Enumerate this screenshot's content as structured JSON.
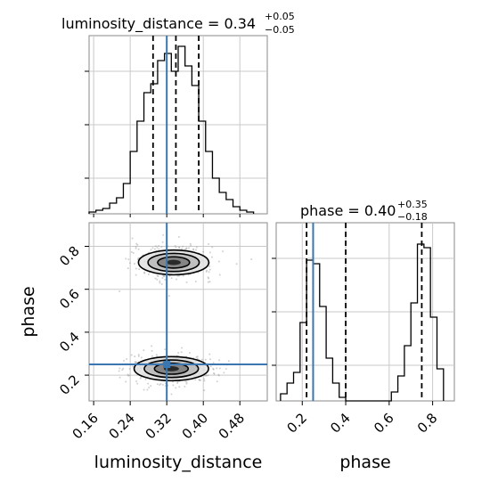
{
  "chart_data": {
    "type": "corner",
    "truth_color": "#3a77b0",
    "grid": true,
    "parameters": [
      "luminosity_distance",
      "phase"
    ],
    "xlabels": {
      "luminosity_distance": "luminosity_distance",
      "phase": "phase"
    },
    "ylabels": {
      "phase": "phase"
    },
    "truths": {
      "luminosity_distance": 0.32,
      "phase": 0.25
    },
    "panels": [
      {
        "type": "histogram",
        "parameter": "luminosity_distance",
        "title": {
          "base": "luminosity_distance = 0.34",
          "sup": "+0.05",
          "sub": "−0.05"
        },
        "xlim": [
          0.15,
          0.54
        ],
        "ylim": [
          0,
          1.0
        ],
        "quantile_lines": [
          0.29,
          0.34,
          0.39
        ],
        "truth": 0.32,
        "bin_edges": [
          0.15,
          0.165,
          0.18,
          0.195,
          0.21,
          0.225,
          0.24,
          0.255,
          0.27,
          0.285,
          0.3,
          0.315,
          0.33,
          0.345,
          0.36,
          0.375,
          0.39,
          0.405,
          0.42,
          0.435,
          0.45,
          0.465,
          0.48,
          0.495,
          0.51
        ],
        "counts": [
          0.01,
          0.02,
          0.03,
          0.06,
          0.09,
          0.17,
          0.35,
          0.52,
          0.68,
          0.73,
          0.86,
          0.9,
          0.8,
          0.94,
          0.83,
          0.72,
          0.52,
          0.35,
          0.2,
          0.12,
          0.08,
          0.04,
          0.02,
          0.01
        ]
      },
      {
        "type": "histogram",
        "parameter": "phase",
        "title": {
          "base": "phase = 0.40",
          "sup": "+0.35",
          "sub": "−0.18"
        },
        "xlim": [
          0.08,
          0.9
        ],
        "ylim": [
          0,
          1.0
        ],
        "quantile_lines": [
          0.22,
          0.4,
          0.75
        ],
        "truth": 0.25,
        "x_ticks": [
          "0.2",
          "0.4",
          "0.6",
          "0.8"
        ],
        "x_tick_values": [
          0.2,
          0.4,
          0.6,
          0.8
        ],
        "bin_edges": [
          0.1,
          0.13,
          0.16,
          0.19,
          0.22,
          0.25,
          0.28,
          0.31,
          0.34,
          0.37,
          0.4,
          0.43,
          0.46,
          0.49,
          0.52,
          0.55,
          0.58,
          0.61,
          0.64,
          0.67,
          0.7,
          0.73,
          0.76,
          0.79,
          0.82,
          0.85
        ],
        "counts": [
          0.04,
          0.1,
          0.16,
          0.44,
          0.79,
          0.77,
          0.53,
          0.24,
          0.1,
          0.02,
          0.0,
          0.0,
          0.0,
          0.0,
          0.0,
          0.0,
          0.0,
          0.05,
          0.14,
          0.31,
          0.55,
          0.88,
          0.86,
          0.47,
          0.18
        ]
      },
      {
        "type": "2d-density",
        "x_parameter": "luminosity_distance",
        "y_parameter": "phase",
        "xlim": [
          0.15,
          0.54
        ],
        "ylim": [
          0.08,
          0.91
        ],
        "x_ticks": [
          "0.16",
          "0.24",
          "0.32",
          "0.40",
          "0.48"
        ],
        "x_tick_values": [
          0.16,
          0.24,
          0.32,
          0.4,
          0.48
        ],
        "y_ticks": [
          "0.2",
          "0.4",
          "0.6",
          "0.8"
        ],
        "y_tick_values": [
          0.2,
          0.4,
          0.6,
          0.8
        ],
        "truth": [
          0.32,
          0.25
        ],
        "modes": [
          {
            "center": [
              0.335,
              0.725
            ],
            "sigma": [
              0.035,
              0.035
            ],
            "contour_levels": [
              1.0,
              1.6,
              2.2
            ]
          },
          {
            "center": [
              0.33,
              0.23
            ],
            "sigma": [
              0.037,
              0.034
            ],
            "contour_levels": [
              1.0,
              1.6,
              2.2
            ]
          }
        ]
      }
    ]
  }
}
